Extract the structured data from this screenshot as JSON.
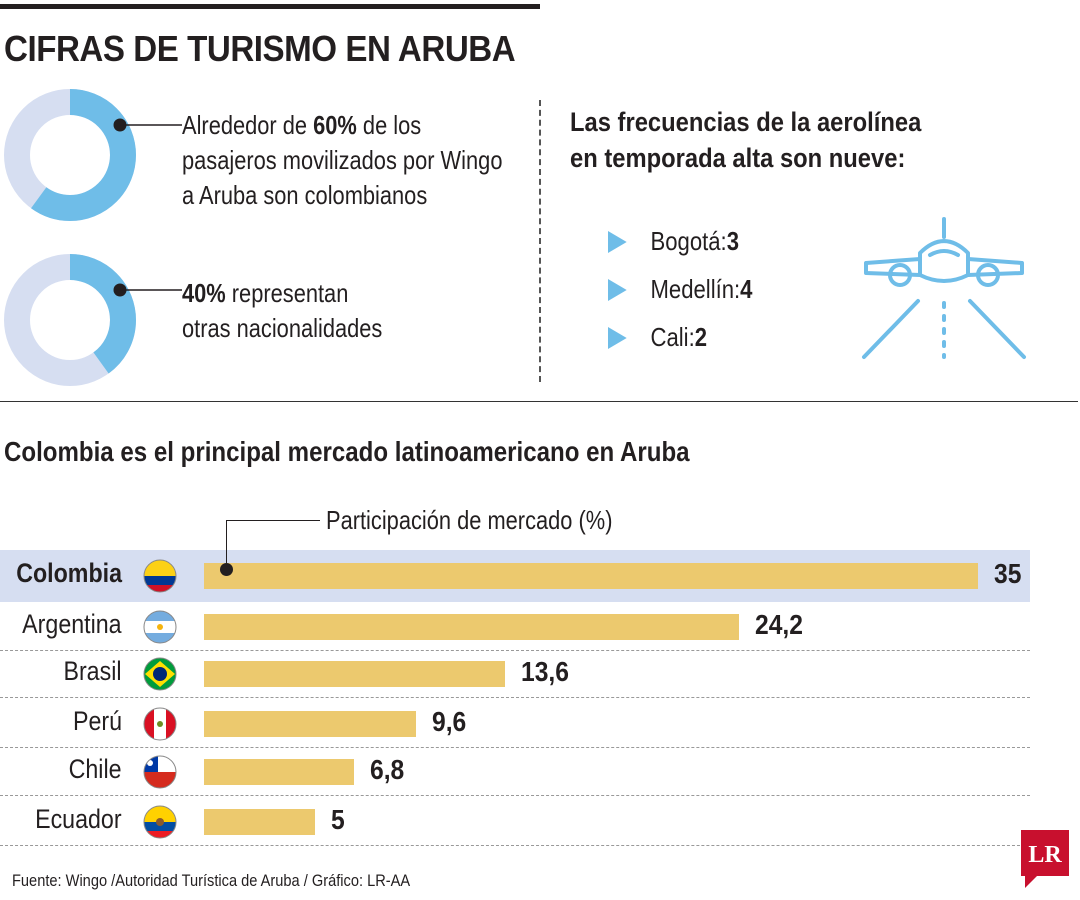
{
  "title": "CIFRAS DE TURISMO EN ARUBA",
  "donuts": [
    {
      "percent": 60,
      "pre": "Alrededor de ",
      "bold": "60%",
      "post": " de los",
      "line2": "pasajeros movilizados por Wingo",
      "line3": "a Aruba son colombianos"
    },
    {
      "percent": 40,
      "bold": "40%",
      "post": " representan",
      "line2": "otras nacionalidades"
    }
  ],
  "frequencies": {
    "title_line1": "Las frecuencias de la aerolínea",
    "title_line2": "en temporada alta son nueve:",
    "items": [
      {
        "city": "Bogotá: ",
        "value": "3"
      },
      {
        "city": "Medellín: ",
        "value": "4"
      },
      {
        "city": "Cali: ",
        "value": "2"
      }
    ]
  },
  "chart_data": {
    "type": "bar",
    "title": "Colombia es el principal mercado latinoamericano en Aruba",
    "legend": "Participación de mercado (%)",
    "categories": [
      "Colombia",
      "Argentina",
      "Brasil",
      "Perú",
      "Chile",
      "Ecuador"
    ],
    "values": [
      35,
      24.2,
      13.6,
      9.6,
      6.8,
      5
    ],
    "value_labels": [
      "35",
      "24,2",
      "13,6",
      "9,6",
      "6,8",
      "5"
    ],
    "xlim": [
      0,
      35
    ],
    "highlight": "Colombia"
  },
  "source": "Fuente: Wingo /Autoridad Turística de Aruba / Gráfico: LR-AA",
  "logo": "LR",
  "colors": {
    "bar": "#ecc96e",
    "donut_fill": "#6fbde8",
    "donut_rest": "#d6def1",
    "highlight": "#d6def1",
    "logo": "#c8102e"
  }
}
